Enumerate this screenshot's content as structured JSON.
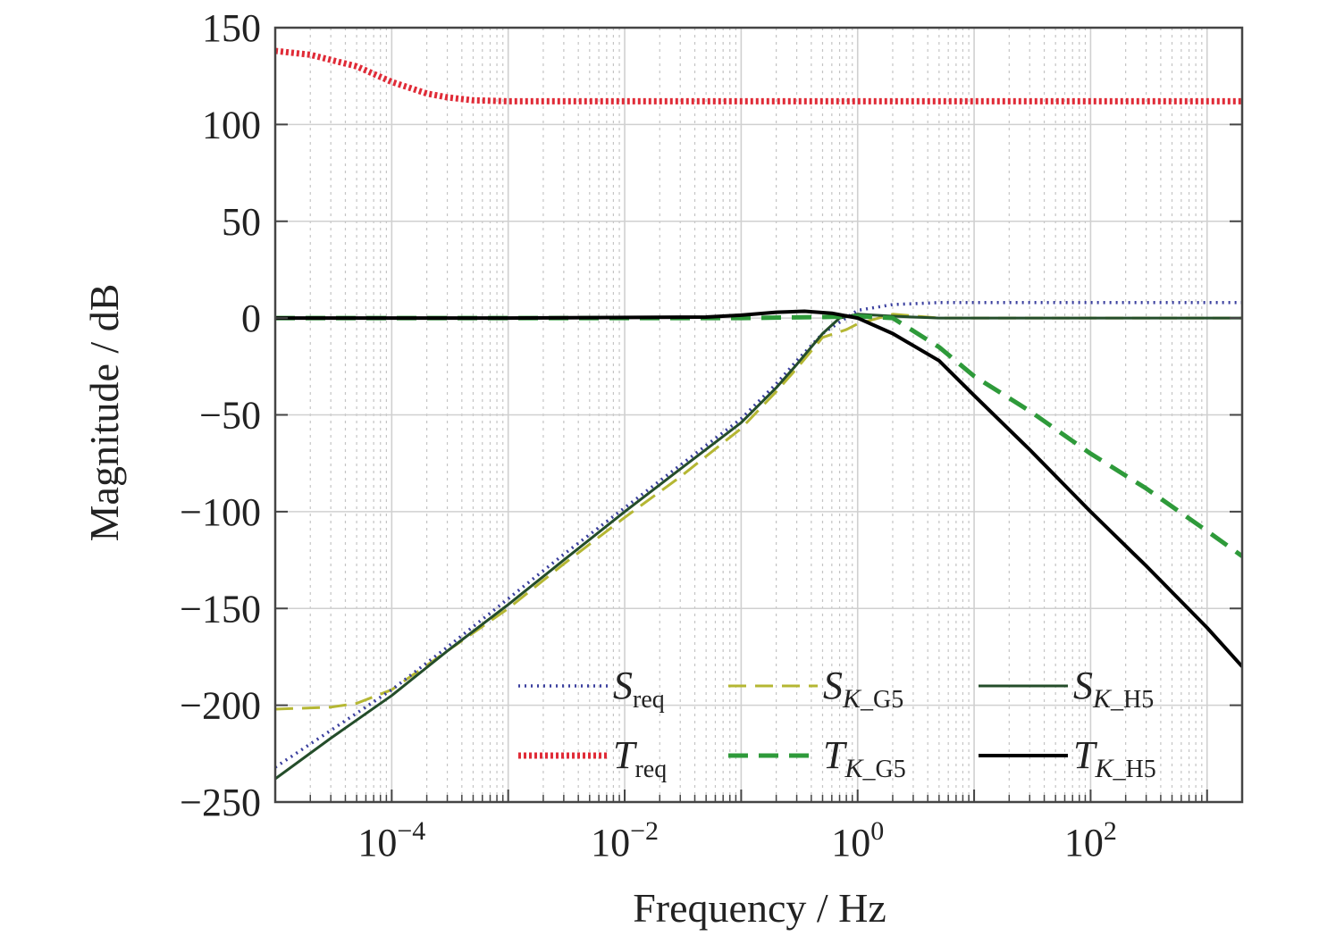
{
  "chart_data": {
    "type": "line",
    "xscale": "log",
    "xlabel": "Frequency / Hz",
    "ylabel": "Magnitude / dB",
    "xlim": [
      1e-05,
      2000
    ],
    "ylim": [
      -250,
      150
    ],
    "grid": true,
    "x_ticks": [
      {
        "base": "10",
        "exp": "−4",
        "value": 0.0001
      },
      {
        "base": "10",
        "exp": "−2",
        "value": 0.01
      },
      {
        "base": "10",
        "exp": "0",
        "value": 1
      },
      {
        "base": "10",
        "exp": "2",
        "value": 100
      }
    ],
    "y_ticks": [
      {
        "value": 150,
        "label": "150"
      },
      {
        "value": 100,
        "label": "100"
      },
      {
        "value": 50,
        "label": "50"
      },
      {
        "value": 0,
        "label": "0"
      },
      {
        "value": -50,
        "label": "−50"
      },
      {
        "value": -100,
        "label": "−100"
      },
      {
        "value": -150,
        "label": "−150"
      },
      {
        "value": -200,
        "label": "−200"
      },
      {
        "value": -250,
        "label": "−250"
      }
    ],
    "legend_position": "bottom-right",
    "series": [
      {
        "name": "S_req",
        "label_main": "S",
        "label_sub": "req",
        "color": "#3a3f9e",
        "style": "dotted",
        "width": 3.5,
        "x": [
          1e-05,
          3e-05,
          0.0001,
          0.0003,
          0.001,
          0.003,
          0.01,
          0.03,
          0.1,
          0.2,
          0.3,
          0.5,
          1,
          2,
          5,
          10,
          100,
          2000
        ],
        "y": [
          -232,
          -213,
          -192,
          -170,
          -145,
          -122,
          -98,
          -76,
          -52,
          -34,
          -22,
          -8,
          4,
          7,
          8,
          8,
          8,
          8
        ]
      },
      {
        "name": "T_req",
        "label_main": "T",
        "label_sub": "req",
        "color": "#e02b37",
        "style": "dotted",
        "width": 7,
        "x": [
          1e-05,
          2e-05,
          5e-05,
          0.0001,
          0.0002,
          0.0003,
          0.0005,
          0.001,
          0.01,
          1,
          100,
          2000
        ],
        "y": [
          138,
          136,
          130,
          122,
          116,
          114,
          112.5,
          112,
          112,
          112,
          112,
          112
        ]
      },
      {
        "name": "S_K_G5",
        "label_main": "S",
        "label_sub": "K_G5",
        "color": "#b5b733",
        "style": "dashed",
        "width": 3,
        "x": [
          1e-05,
          3e-05,
          5e-05,
          0.0001,
          0.0003,
          0.001,
          0.003,
          0.01,
          0.03,
          0.1,
          0.2,
          0.3,
          0.5,
          0.8,
          1,
          2,
          5,
          10,
          100,
          2000
        ],
        "y": [
          -202,
          -201,
          -199,
          -192,
          -172,
          -150,
          -127,
          -103,
          -82,
          -57,
          -38,
          -26,
          -10,
          -6,
          -3,
          2,
          0,
          0,
          0,
          0
        ]
      },
      {
        "name": "T_K_G5",
        "label_main": "T",
        "label_sub": "K_G5",
        "color": "#2e9a3a",
        "style": "dashed",
        "width": 5,
        "x": [
          1e-05,
          0.001,
          0.1,
          0.5,
          1,
          2,
          5,
          10,
          30,
          100,
          300,
          1000,
          2000
        ],
        "y": [
          0,
          0,
          0,
          0.5,
          1,
          0,
          -15,
          -30,
          -48,
          -70,
          -88,
          -110,
          -123
        ]
      },
      {
        "name": "S_K_H5",
        "label_main": "S",
        "label_sub": "K_H5",
        "color": "#244d2a",
        "style": "solid",
        "width": 3,
        "x": [
          1e-05,
          3e-05,
          0.0001,
          0.0003,
          0.001,
          0.003,
          0.01,
          0.03,
          0.1,
          0.2,
          0.3,
          0.5,
          0.7,
          1,
          2,
          5,
          10,
          100,
          2000
        ],
        "y": [
          -238,
          -217,
          -195,
          -172,
          -148,
          -125,
          -100,
          -78,
          -54,
          -36,
          -24,
          -8,
          0,
          2,
          1,
          0,
          0,
          0,
          0
        ]
      },
      {
        "name": "T_K_H5",
        "label_main": "T",
        "label_sub": "K_H5",
        "color": "#000000",
        "style": "solid",
        "width": 4,
        "x": [
          1e-05,
          0.001,
          0.05,
          0.1,
          0.2,
          0.35,
          0.6,
          1,
          2,
          5,
          10,
          30,
          100,
          300,
          1000,
          2000
        ],
        "y": [
          0,
          0,
          0.5,
          1.5,
          3,
          3.5,
          2.5,
          0,
          -8,
          -22,
          -40,
          -68,
          -100,
          -128,
          -160,
          -180
        ]
      }
    ]
  }
}
